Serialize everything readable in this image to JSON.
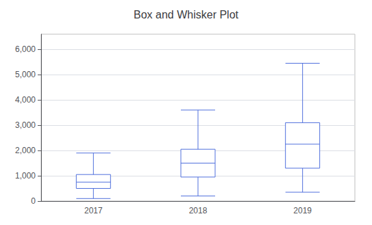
{
  "chart_data": {
    "type": "box",
    "title": "Box and Whisker Plot",
    "categories": [
      "2017",
      "2018",
      "2019"
    ],
    "whisker_low": [
      100,
      200,
      350
    ],
    "q1": [
      500,
      950,
      1300
    ],
    "median": [
      750,
      1500,
      2250
    ],
    "q3": [
      1050,
      2050,
      3100
    ],
    "whisker_high": [
      1900,
      3600,
      5450
    ],
    "ylim": [
      0,
      6600
    ],
    "yticks": [
      0,
      {
        "value": 1000,
        "label": "1,000"
      },
      {
        "value": 2000,
        "label": "2,000"
      },
      {
        "value": 3000,
        "label": "3,000"
      },
      {
        "value": 4000,
        "label": "4,000"
      },
      {
        "value": 5000,
        "label": "5,000"
      },
      {
        "value": 6000,
        "label": "6,000"
      }
    ],
    "grid": true
  }
}
